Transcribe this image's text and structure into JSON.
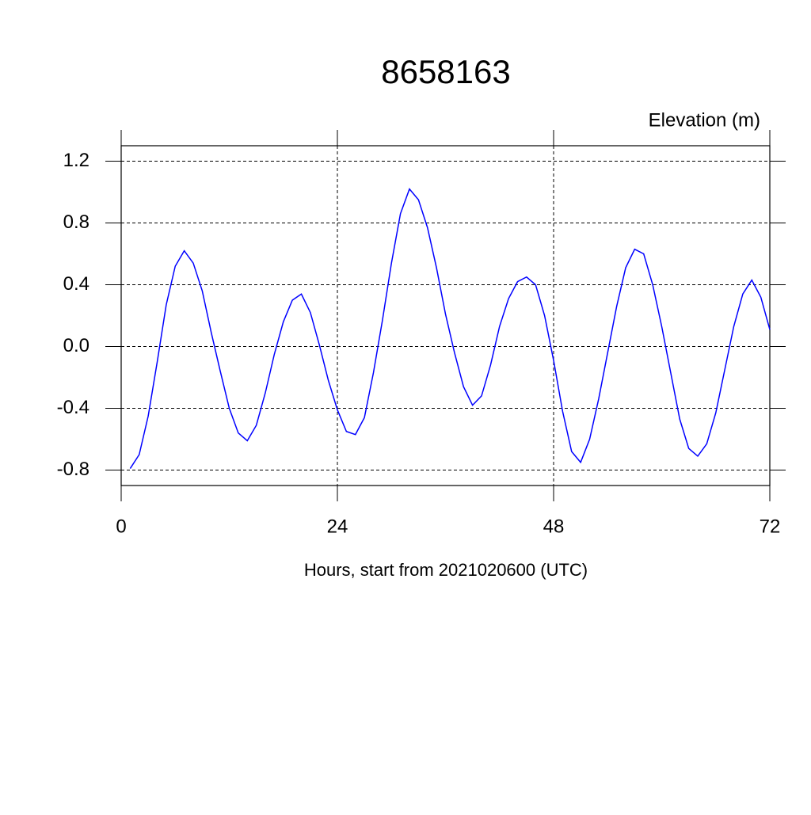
{
  "chart_data": {
    "type": "line",
    "title": "8658163",
    "ylabel": "Elevation (m)",
    "xlabel": "Hours, start from 2021020600 (UTC)",
    "x": [
      1,
      2,
      3,
      4,
      5,
      6,
      7,
      8,
      9,
      10,
      11,
      12,
      13,
      14,
      15,
      16,
      17,
      18,
      19,
      20,
      21,
      22,
      23,
      24,
      25,
      26,
      27,
      28,
      29,
      30,
      31,
      32,
      33,
      34,
      35,
      36,
      37,
      38,
      39,
      40,
      41,
      42,
      43,
      44,
      45,
      46,
      47,
      48,
      49,
      50,
      51,
      52,
      53,
      54,
      55,
      56,
      57,
      58,
      59,
      60,
      61,
      62,
      63,
      64,
      65,
      66,
      67,
      68,
      69,
      70,
      71,
      72
    ],
    "series": [
      {
        "color": "#0000ff",
        "values": [
          -0.79,
          -0.7,
          -0.45,
          -0.1,
          0.27,
          0.52,
          0.62,
          0.54,
          0.36,
          0.09,
          -0.16,
          -0.4,
          -0.56,
          -0.61,
          -0.51,
          -0.3,
          -0.05,
          0.16,
          0.3,
          0.34,
          0.22,
          0.01,
          -0.22,
          -0.41,
          -0.55,
          -0.57,
          -0.46,
          -0.17,
          0.17,
          0.54,
          0.86,
          1.02,
          0.95,
          0.77,
          0.51,
          0.21,
          -0.04,
          -0.26,
          -0.38,
          -0.32,
          -0.12,
          0.13,
          0.31,
          0.42,
          0.45,
          0.4,
          0.2,
          -0.09,
          -0.42,
          -0.68,
          -0.75,
          -0.6,
          -0.34,
          -0.04,
          0.26,
          0.51,
          0.63,
          0.6,
          0.4,
          0.13,
          -0.17,
          -0.47,
          -0.66,
          -0.71,
          -0.63,
          -0.43,
          -0.15,
          0.13,
          0.34,
          0.43,
          0.32,
          0.11
        ]
      }
    ],
    "xlim": [
      0,
      72
    ],
    "xticks": [
      0,
      24,
      48,
      72
    ],
    "ylim": [
      -0.9,
      1.3
    ],
    "yticks": [
      -0.8,
      -0.4,
      {
        "value": 0,
        "label": "0.0"
      },
      0.4,
      0.8,
      1.2
    ],
    "grid": true
  }
}
